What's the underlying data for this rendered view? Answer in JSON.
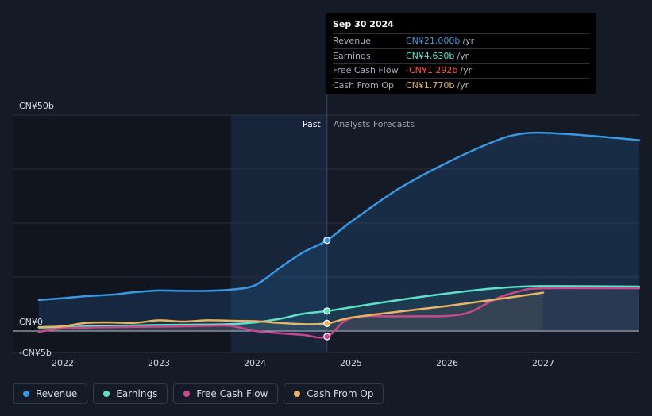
{
  "chart_data": {
    "type": "line",
    "ylim": [
      -5,
      50
    ],
    "y_ticks": [
      {
        "value": 50,
        "label": "CN¥50b"
      },
      {
        "value": 0,
        "label": "CN¥0"
      },
      {
        "value": -5,
        "label": "-CN¥5b"
      }
    ],
    "x_ticks": [
      {
        "value": 2022,
        "label": "2022"
      },
      {
        "value": 2023,
        "label": "2023"
      },
      {
        "value": 2024,
        "label": "2024"
      },
      {
        "value": 2025,
        "label": "2025"
      },
      {
        "value": 2026,
        "label": "2026"
      },
      {
        "value": 2027,
        "label": "2027"
      }
    ],
    "xlim": [
      2021.5,
      2028.0
    ],
    "past_label": "Past",
    "forecast_label": "Analysts Forecasts",
    "past_end": 2024.75,
    "series": [
      {
        "name": "Revenue",
        "color": "#3a98e0",
        "points": [
          [
            2021.75,
            7.2
          ],
          [
            2022.0,
            7.6
          ],
          [
            2022.25,
            8.1
          ],
          [
            2022.5,
            8.4
          ],
          [
            2022.75,
            9.0
          ],
          [
            2023.0,
            9.4
          ],
          [
            2023.25,
            9.3
          ],
          [
            2023.5,
            9.3
          ],
          [
            2023.75,
            9.6
          ],
          [
            2024.0,
            10.6
          ],
          [
            2024.25,
            14.5
          ],
          [
            2024.5,
            18.2
          ],
          [
            2024.75,
            21.0
          ],
          [
            2025.0,
            25.3
          ],
          [
            2025.5,
            33.0
          ],
          [
            2026.0,
            39.0
          ],
          [
            2026.5,
            44.0
          ],
          [
            2026.75,
            45.6
          ],
          [
            2027.0,
            45.9
          ],
          [
            2027.5,
            45.2
          ],
          [
            2028.0,
            44.2
          ]
        ],
        "forecast_from": 2024.75
      },
      {
        "name": "Earnings",
        "color": "#5fe0c8",
        "points": [
          [
            2021.75,
            0.8
          ],
          [
            2022.0,
            0.9
          ],
          [
            2022.5,
            1.2
          ],
          [
            2023.0,
            1.4
          ],
          [
            2023.5,
            1.5
          ],
          [
            2023.75,
            1.6
          ],
          [
            2024.0,
            2.0
          ],
          [
            2024.25,
            2.8
          ],
          [
            2024.5,
            4.0
          ],
          [
            2024.75,
            4.63
          ],
          [
            2025.0,
            5.5
          ],
          [
            2025.5,
            7.2
          ],
          [
            2026.0,
            8.7
          ],
          [
            2026.5,
            9.9
          ],
          [
            2027.0,
            10.4
          ],
          [
            2028.0,
            10.3
          ]
        ],
        "forecast_from": 2024.75
      },
      {
        "name": "Free Cash Flow",
        "color": "#c8488e",
        "points": [
          [
            2021.75,
            -0.2
          ],
          [
            2022.0,
            0.6
          ],
          [
            2022.5,
            0.9
          ],
          [
            2023.0,
            1.0
          ],
          [
            2023.5,
            1.2
          ],
          [
            2023.75,
            1.2
          ],
          [
            2024.0,
            0.0
          ],
          [
            2024.25,
            -0.5
          ],
          [
            2024.5,
            -0.9
          ],
          [
            2024.75,
            -1.292
          ],
          [
            2025.0,
            3.0
          ],
          [
            2025.5,
            3.4
          ],
          [
            2026.0,
            3.5
          ],
          [
            2026.25,
            4.5
          ],
          [
            2026.5,
            7.4
          ],
          [
            2026.75,
            9.2
          ],
          [
            2027.0,
            9.9
          ],
          [
            2028.0,
            9.9
          ]
        ],
        "forecast_from": 2024.75
      },
      {
        "name": "Cash From Op",
        "color": "#e8b464",
        "points": [
          [
            2021.75,
            0.9
          ],
          [
            2022.0,
            1.1
          ],
          [
            2022.25,
            1.9
          ],
          [
            2022.5,
            2.0
          ],
          [
            2022.75,
            1.9
          ],
          [
            2023.0,
            2.5
          ],
          [
            2023.25,
            2.2
          ],
          [
            2023.5,
            2.5
          ],
          [
            2023.75,
            2.4
          ],
          [
            2024.0,
            2.3
          ],
          [
            2024.25,
            1.9
          ],
          [
            2024.5,
            1.6
          ],
          [
            2024.75,
            1.77
          ],
          [
            2025.0,
            3.1
          ],
          [
            2025.5,
            4.5
          ],
          [
            2026.0,
            5.8
          ],
          [
            2026.5,
            7.3
          ],
          [
            2027.0,
            8.9
          ]
        ],
        "forecast_from": 2024.75
      }
    ],
    "tooltip": {
      "date": "Sep 30 2024",
      "rows": [
        {
          "label": "Revenue",
          "value": "CN¥21.000b",
          "unit": "/yr",
          "color": "#3a98e0"
        },
        {
          "label": "Earnings",
          "value": "CN¥4.630b",
          "unit": "/yr",
          "color": "#5fe0c8"
        },
        {
          "label": "Free Cash Flow",
          "value": "-CN¥1.292b",
          "unit": "/yr",
          "color": "#ff4d4d"
        },
        {
          "label": "Cash From Op",
          "value": "CN¥1.770b",
          "unit": "/yr",
          "color": "#e8b464"
        }
      ]
    },
    "markers_at": 2024.75,
    "marker_values": [
      21.0,
      4.63,
      -1.292,
      1.77
    ],
    "legend_placement": "bottom-left",
    "grid": true
  },
  "legend": [
    {
      "label": "Revenue",
      "color": "#3a98e0"
    },
    {
      "label": "Earnings",
      "color": "#5fe0c8"
    },
    {
      "label": "Free Cash Flow",
      "color": "#c8488e"
    },
    {
      "label": "Cash From Op",
      "color": "#e8b464"
    }
  ]
}
